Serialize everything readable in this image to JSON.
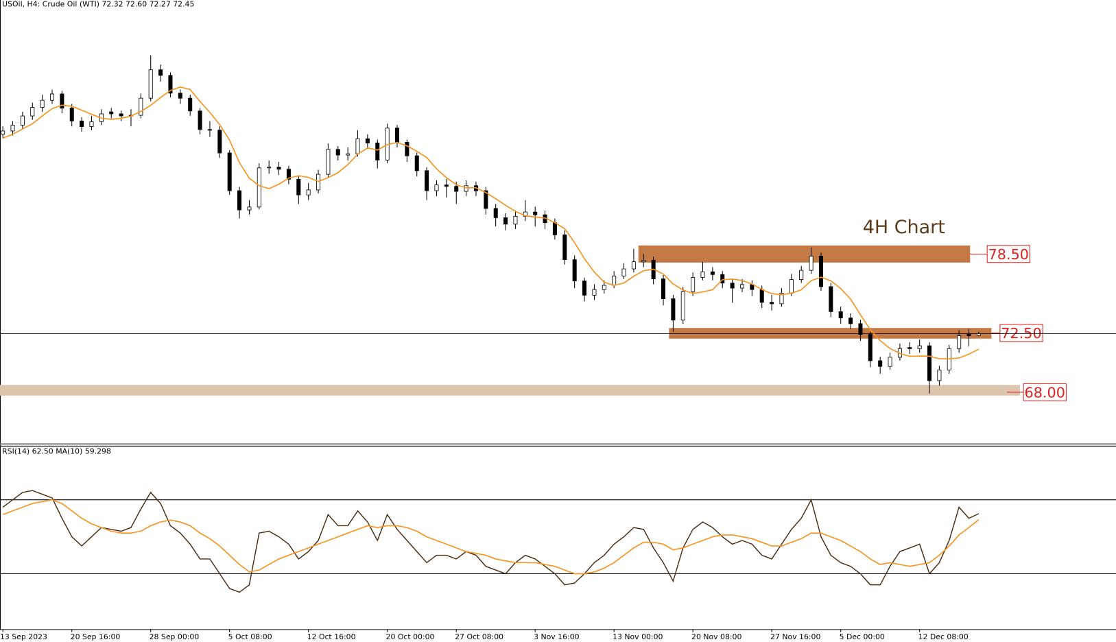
{
  "chart_data": {
    "type": "candlestick",
    "title": "USOil, H4:  Crude Oil (WTI)  72.32 72.60 72.27 72.45",
    "annotation": "4H Chart",
    "ylim": [
      64.2,
      97.8
    ],
    "categories": [
      "13 Sep 2023",
      null,
      null,
      null,
      null,
      null,
      null,
      "20 Sep 16:00",
      null,
      null,
      null,
      null,
      null,
      null,
      null,
      "28 Sep 00:00",
      null,
      null,
      null,
      null,
      null,
      null,
      null,
      "5 Oct 08:00",
      null,
      null,
      null,
      null,
      null,
      null,
      null,
      "12 Oct 16:00",
      null,
      null,
      null,
      null,
      null,
      null,
      null,
      "20 Oct 00:00",
      null,
      null,
      null,
      null,
      null,
      null,
      "27 Oct 08:00",
      null,
      null,
      null,
      null,
      null,
      null,
      null,
      "3 Nov 16:00",
      null,
      null,
      null,
      null,
      null,
      null,
      null,
      "13 Nov 00:00",
      null,
      null,
      null,
      null,
      null,
      null,
      null,
      "20 Nov 08:00",
      null,
      null,
      null,
      null,
      null,
      null,
      null,
      "27 Nov 16:00",
      null,
      null,
      null,
      null,
      null,
      null,
      "5 Dec 00:00",
      null,
      null,
      null,
      null,
      null,
      null,
      null,
      "12 Dec 08:00",
      null,
      null,
      null,
      null,
      null,
      null
    ],
    "ohlc": [
      [
        87.6,
        88.2,
        87.3,
        87.85
      ],
      [
        87.85,
        88.6,
        87.5,
        88.29
      ],
      [
        88.29,
        89.3,
        88.0,
        88.99
      ],
      [
        88.99,
        90.0,
        88.7,
        89.64
      ],
      [
        89.64,
        90.6,
        89.3,
        90.18
      ],
      [
        90.18,
        91.0,
        89.9,
        90.66
      ],
      [
        90.66,
        90.9,
        89.2,
        89.58
      ],
      [
        89.58,
        89.9,
        88.2,
        88.61
      ],
      [
        88.61,
        88.9,
        87.8,
        88.18
      ],
      [
        88.18,
        89.0,
        87.9,
        88.56
      ],
      [
        88.56,
        89.5,
        88.3,
        89.15
      ],
      [
        89.3,
        89.6,
        88.8,
        89.15
      ],
      [
        89.15,
        89.4,
        88.6,
        88.99
      ],
      [
        88.99,
        89.5,
        88.2,
        89.04
      ],
      [
        89.04,
        90.7,
        88.8,
        90.34
      ],
      [
        90.34,
        93.6,
        90.1,
        92.5
      ],
      [
        92.5,
        92.9,
        91.6,
        92.07
      ],
      [
        92.07,
        92.3,
        90.4,
        90.72
      ],
      [
        90.72,
        91.0,
        89.9,
        90.34
      ],
      [
        90.34,
        90.6,
        89.0,
        89.37
      ],
      [
        89.37,
        89.6,
        87.6,
        87.96
      ],
      [
        87.96,
        88.6,
        87.4,
        87.91
      ],
      [
        87.91,
        88.2,
        85.8,
        86.18
      ],
      [
        86.18,
        86.4,
        83.0,
        83.31
      ],
      [
        83.31,
        83.6,
        81.2,
        81.85
      ],
      [
        81.85,
        82.6,
        81.5,
        82.07
      ],
      [
        82.07,
        85.4,
        81.9,
        85.04
      ],
      [
        85.04,
        85.6,
        84.6,
        85.1
      ],
      [
        85.1,
        85.5,
        84.5,
        84.94
      ],
      [
        84.94,
        85.2,
        83.8,
        84.18
      ],
      [
        84.18,
        84.4,
        82.3,
        82.99
      ],
      [
        82.99,
        83.9,
        82.6,
        83.37
      ],
      [
        83.37,
        84.9,
        83.1,
        84.56
      ],
      [
        84.56,
        86.9,
        84.3,
        86.45
      ],
      [
        86.45,
        86.7,
        85.6,
        86.02
      ],
      [
        86.02,
        86.6,
        85.6,
        86.12
      ],
      [
        86.12,
        87.9,
        85.9,
        87.26
      ],
      [
        87.26,
        87.6,
        86.5,
        86.94
      ],
      [
        86.94,
        87.2,
        85.0,
        85.64
      ],
      [
        85.64,
        88.4,
        85.4,
        88.07
      ],
      [
        88.07,
        88.3,
        86.6,
        86.99
      ],
      [
        86.99,
        87.2,
        85.5,
        85.96
      ],
      [
        85.96,
        86.2,
        84.4,
        84.83
      ],
      [
        84.83,
        85.1,
        82.6,
        83.31
      ],
      [
        83.31,
        84.1,
        82.9,
        83.75
      ],
      [
        83.75,
        84.2,
        82.8,
        83.64
      ],
      [
        83.64,
        84.0,
        82.3,
        83.26
      ],
      [
        83.26,
        84.1,
        82.9,
        83.69
      ],
      [
        83.69,
        84.0,
        82.9,
        83.31
      ],
      [
        83.31,
        83.6,
        81.5,
        81.96
      ],
      [
        81.96,
        82.3,
        80.6,
        81.26
      ],
      [
        81.26,
        81.6,
        80.3,
        80.77
      ],
      [
        80.77,
        81.8,
        80.4,
        81.37
      ],
      [
        81.37,
        82.6,
        81.0,
        81.69
      ],
      [
        81.69,
        82.1,
        80.6,
        81.48
      ],
      [
        81.48,
        81.8,
        80.4,
        80.88
      ],
      [
        80.88,
        81.2,
        79.6,
        79.96
      ],
      [
        79.96,
        80.3,
        77.7,
        78.07
      ],
      [
        78.07,
        78.4,
        75.9,
        76.45
      ],
      [
        76.45,
        76.7,
        74.9,
        75.37
      ],
      [
        75.37,
        76.2,
        75.0,
        75.8
      ],
      [
        75.8,
        76.5,
        75.5,
        76.12
      ],
      [
        76.12,
        77.2,
        75.9,
        76.83
      ],
      [
        76.83,
        77.8,
        76.6,
        77.37
      ],
      [
        77.37,
        78.9,
        77.1,
        77.91
      ],
      [
        77.91,
        78.5,
        77.5,
        78.02
      ],
      [
        78.02,
        78.3,
        76.2,
        76.61
      ],
      [
        76.61,
        76.9,
        74.6,
        75.1
      ],
      [
        75.1,
        75.4,
        72.6,
        73.48
      ],
      [
        73.48,
        76.0,
        73.2,
        75.64
      ],
      [
        75.64,
        77.1,
        75.3,
        76.72
      ],
      [
        76.72,
        77.9,
        76.5,
        77.15
      ],
      [
        77.15,
        77.5,
        76.5,
        76.94
      ],
      [
        76.94,
        77.2,
        75.9,
        76.29
      ],
      [
        76.29,
        76.6,
        74.8,
        75.91
      ],
      [
        75.91,
        76.6,
        75.6,
        76.18
      ],
      [
        76.18,
        76.5,
        75.3,
        75.8
      ],
      [
        75.8,
        76.1,
        74.4,
        74.83
      ],
      [
        74.83,
        75.4,
        74.2,
        74.72
      ],
      [
        74.72,
        75.9,
        74.5,
        75.53
      ],
      [
        75.53,
        77.0,
        75.3,
        76.56
      ],
      [
        76.56,
        77.6,
        76.3,
        77.26
      ],
      [
        77.26,
        79.0,
        77.0,
        78.34
      ],
      [
        78.34,
        78.6,
        75.7,
        76.02
      ],
      [
        76.02,
        76.3,
        73.7,
        74.12
      ],
      [
        74.12,
        74.5,
        73.2,
        73.64
      ],
      [
        73.64,
        74.0,
        72.8,
        73.21
      ],
      [
        73.21,
        73.5,
        71.9,
        72.39
      ],
      [
        72.39,
        72.6,
        69.9,
        70.39
      ],
      [
        70.39,
        70.7,
        69.4,
        69.96
      ],
      [
        69.96,
        71.0,
        69.7,
        70.66
      ],
      [
        70.66,
        71.7,
        70.4,
        71.31
      ],
      [
        71.4,
        71.8,
        70.9,
        71.31
      ],
      [
        71.31,
        72.0,
        71.0,
        71.53
      ],
      [
        71.53,
        71.8,
        67.9,
        68.88
      ],
      [
        68.88,
        70.0,
        68.5,
        69.69
      ],
      [
        69.69,
        71.6,
        69.4,
        71.31
      ],
      [
        71.31,
        72.7,
        71.0,
        72.29
      ],
      [
        72.4,
        72.8,
        71.5,
        72.29
      ],
      [
        72.32,
        72.6,
        72.27,
        72.45
      ]
    ],
    "ma": {
      "color": "#f7931e",
      "values": [
        87.3,
        87.6,
        88.0,
        88.4,
        88.99,
        89.55,
        89.81,
        89.73,
        89.43,
        89.12,
        88.82,
        88.73,
        88.81,
        88.98,
        89.33,
        89.8,
        90.39,
        90.93,
        91.19,
        91.0,
        90.09,
        89.26,
        88.33,
        87.15,
        85.44,
        84.26,
        83.69,
        83.47,
        83.8,
        84.27,
        84.45,
        84.32,
        84.01,
        84.31,
        84.68,
        85.3,
        86.08,
        86.56,
        86.4,
        86.81,
        86.98,
        86.72,
        86.3,
        85.83,
        84.97,
        84.3,
        83.76,
        83.53,
        83.53,
        83.17,
        82.7,
        82.2,
        81.73,
        81.41,
        81.31,
        81.24,
        80.88,
        80.42,
        79.37,
        78.15,
        77.13,
        76.36,
        76.11,
        76.3,
        76.81,
        77.23,
        77.35,
        76.98,
        76.22,
        75.77,
        75.51,
        75.62,
        75.79,
        76.55,
        76.6,
        76.49,
        76.22,
        75.8,
        75.49,
        75.41,
        75.53,
        75.78,
        76.48,
        76.74,
        76.46,
        75.88,
        75.07,
        73.88,
        72.75,
        71.92,
        71.32,
        70.94,
        70.73,
        70.75,
        70.74,
        70.54,
        70.54,
        70.6,
        70.89,
        71.27
      ]
    },
    "current_price_color": "#000000",
    "zones": [
      {
        "label": "78.50",
        "value": 78.5,
        "range": [
          77.85,
          79.15
        ],
        "color": "#c47a45"
      },
      {
        "label": "72.50",
        "value": 72.5,
        "range": [
          72.07,
          72.88
        ],
        "color": "#c47a45"
      },
      {
        "label": "68.00",
        "value": 68.0,
        "range": [
          67.74,
          68.55
        ],
        "color": "#dcc4ad"
      }
    ],
    "rsi": {
      "title": "RSI(14) 62.50 MA(10) 59.298",
      "ylim": [
        0,
        100
      ],
      "levels": [
        70,
        30
      ],
      "color": "#4a2c12",
      "ma_color": "#f7931e",
      "values": [
        66,
        70,
        74,
        75,
        73,
        71,
        60,
        50,
        45,
        50,
        55,
        54,
        53,
        55,
        65,
        74,
        68,
        56,
        52,
        46,
        38,
        38,
        30,
        22,
        20,
        24,
        52,
        53,
        50,
        46,
        38,
        42,
        48,
        62,
        56,
        56,
        64,
        58,
        48,
        62,
        54,
        48,
        42,
        36,
        40,
        40,
        38,
        42,
        40,
        34,
        32,
        30,
        36,
        40,
        38,
        34,
        30,
        24,
        25,
        30,
        36,
        40,
        46,
        50,
        55,
        54,
        44,
        36,
        26,
        44,
        54,
        58,
        55,
        50,
        46,
        48,
        46,
        40,
        38,
        46,
        54,
        60,
        70,
        50,
        40,
        36,
        34,
        30,
        24,
        24,
        34,
        42,
        44,
        46,
        30,
        36,
        48,
        66,
        60,
        62.5
      ],
      "ma_values": [
        62,
        64,
        66,
        68,
        69,
        70,
        68,
        64,
        60,
        57,
        55,
        53,
        52,
        52,
        53,
        56,
        58,
        59,
        58,
        56,
        52,
        49,
        45,
        40,
        35,
        31,
        32,
        35,
        38,
        40,
        42,
        44,
        46,
        48,
        50,
        52,
        54,
        56,
        55,
        56,
        56,
        55,
        53,
        50,
        48,
        46,
        44,
        42,
        41,
        40,
        38,
        37,
        36,
        36,
        36,
        35,
        34,
        32,
        30,
        30,
        31,
        33,
        36,
        40,
        44,
        47,
        47,
        46,
        43,
        44,
        46,
        48,
        50,
        51,
        51,
        50,
        49,
        47,
        45,
        45,
        47,
        49,
        52,
        52,
        50,
        48,
        45,
        42,
        38,
        35,
        36,
        35,
        34,
        35,
        36,
        40,
        45,
        51,
        55,
        59.298
      ]
    }
  }
}
